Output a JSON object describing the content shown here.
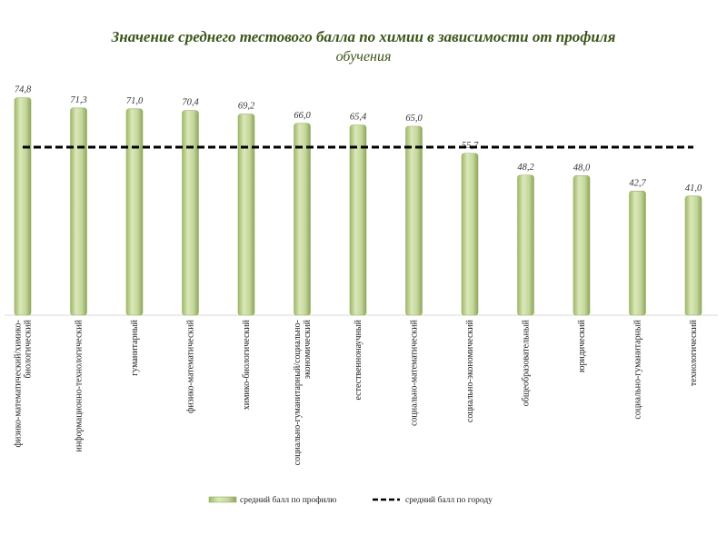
{
  "chart_data": {
    "type": "bar",
    "title": "Значение среднего тестового балла по химии в зависимости от профиля",
    "title_line2": "обучения",
    "categories": [
      [
        "физико-математический/химико-",
        "биологический"
      ],
      [
        "информационно-технологический"
      ],
      [
        "гуманитарный"
      ],
      [
        "физико-математический"
      ],
      [
        "химико-биологический"
      ],
      [
        "социально-гуманитарный/социально-",
        "экономический"
      ],
      [
        "естественнонаучный"
      ],
      [
        "социально-математический"
      ],
      [
        "социально-экономический"
      ],
      [
        "общеобразовательный"
      ],
      [
        "юридический"
      ],
      [
        "социально-гуманитарный"
      ],
      [
        "технологический"
      ]
    ],
    "series": [
      {
        "name": "средний балл по профилю",
        "color": "#c3d69b",
        "values": [
          74.8,
          71.3,
          71.0,
          70.4,
          69.2,
          66.0,
          65.4,
          65.0,
          55.7,
          48.2,
          48.0,
          42.7,
          41.0
        ],
        "labels": [
          "74,8",
          "71,3",
          "71,0",
          "70,4",
          "69,2",
          "66,0",
          "65,4",
          "65,0",
          "55,7",
          "48,2",
          "48,0",
          "42,7",
          "41,0"
        ]
      },
      {
        "name": "средний балл по городу",
        "type": "line",
        "style": "dashed",
        "color": "#000000",
        "value": 57.8
      }
    ],
    "ylim": [
      0,
      80
    ],
    "grid": false,
    "legend": "bottom"
  }
}
